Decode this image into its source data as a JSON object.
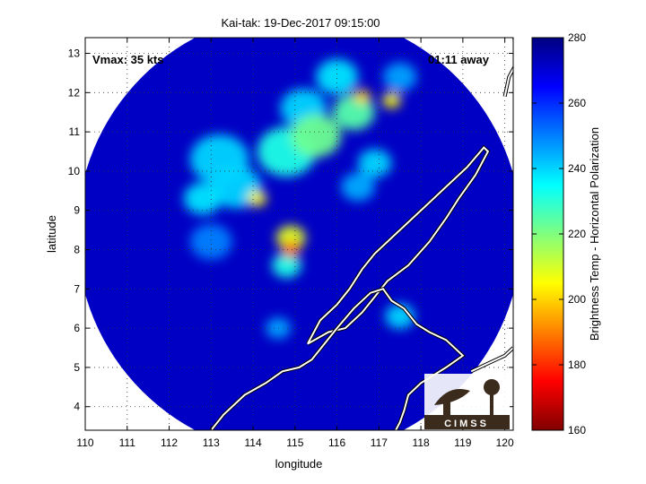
{
  "chart_data": {
    "type": "heatmap",
    "title": "Kai-tak: 19-Dec-2017 09:15:00",
    "xlabel": "longitude",
    "ylabel": "latitude",
    "xlim": [
      110,
      120.2
    ],
    "ylim": [
      3.4,
      13.4
    ],
    "x_ticks": [
      110,
      111,
      112,
      113,
      114,
      115,
      116,
      117,
      118,
      119,
      120
    ],
    "y_ticks": [
      4,
      5,
      6,
      7,
      8,
      9,
      10,
      11,
      12,
      13
    ],
    "grid": true,
    "annotations": {
      "vmax": "Vmax: 35 kts",
      "time_away": "01:11 away"
    },
    "colorbar": {
      "label": "Brightness Temp - Horizontal Polarization",
      "min": 160,
      "max": 280,
      "ticks": [
        160,
        180,
        200,
        220,
        240,
        260,
        280
      ],
      "colormap": "jet"
    },
    "swath": {
      "center_lon": 115.1,
      "center_lat": 8.4,
      "radius_deg": 5.3,
      "background_temp": 272
    },
    "features": [
      {
        "lon": 114.9,
        "lat": 8.0,
        "temp": 185,
        "spread": 0.22
      },
      {
        "lon": 114.9,
        "lat": 8.3,
        "temp": 208,
        "spread": 0.35
      },
      {
        "lon": 114.8,
        "lat": 7.6,
        "temp": 232,
        "spread": 0.35
      },
      {
        "lon": 114.1,
        "lat": 9.3,
        "temp": 205,
        "spread": 0.22
      },
      {
        "lon": 113.6,
        "lat": 9.6,
        "temp": 240,
        "spread": 0.6
      },
      {
        "lon": 112.8,
        "lat": 9.3,
        "temp": 238,
        "spread": 0.45
      },
      {
        "lon": 115.5,
        "lat": 10.9,
        "temp": 222,
        "spread": 0.6
      },
      {
        "lon": 114.8,
        "lat": 10.5,
        "temp": 232,
        "spread": 0.7
      },
      {
        "lon": 113.2,
        "lat": 10.3,
        "temp": 240,
        "spread": 0.7
      },
      {
        "lon": 116.4,
        "lat": 11.5,
        "temp": 225,
        "spread": 0.5
      },
      {
        "lon": 116.6,
        "lat": 11.9,
        "temp": 200,
        "spread": 0.2
      },
      {
        "lon": 117.3,
        "lat": 11.8,
        "temp": 205,
        "spread": 0.22
      },
      {
        "lon": 116.0,
        "lat": 12.4,
        "temp": 238,
        "spread": 0.5
      },
      {
        "lon": 115.2,
        "lat": 11.6,
        "temp": 240,
        "spread": 0.55
      },
      {
        "lon": 117.5,
        "lat": 12.4,
        "temp": 246,
        "spread": 0.4
      },
      {
        "lon": 116.9,
        "lat": 10.2,
        "temp": 240,
        "spread": 0.4
      },
      {
        "lon": 116.5,
        "lat": 9.6,
        "temp": 245,
        "spread": 0.4
      },
      {
        "lon": 114.6,
        "lat": 6.0,
        "temp": 246,
        "spread": 0.3
      },
      {
        "lon": 117.5,
        "lat": 6.3,
        "temp": 240,
        "spread": 0.35
      },
      {
        "lon": 113.0,
        "lat": 8.2,
        "temp": 250,
        "spread": 0.5
      }
    ],
    "coastlines": [
      {
        "name": "palawan",
        "points": [
          [
            115.3,
            5.6
          ],
          [
            115.8,
            5.9
          ],
          [
            116.2,
            6.0
          ],
          [
            116.6,
            6.4
          ],
          [
            116.9,
            6.8
          ],
          [
            117.2,
            7.2
          ],
          [
            117.7,
            7.6
          ],
          [
            118.2,
            8.2
          ],
          [
            118.6,
            8.8
          ],
          [
            118.9,
            9.3
          ],
          [
            119.3,
            9.9
          ],
          [
            119.6,
            10.5
          ],
          [
            119.5,
            10.6
          ],
          [
            119.1,
            10.1
          ],
          [
            118.6,
            9.6
          ],
          [
            118.2,
            9.2
          ],
          [
            117.8,
            8.8
          ],
          [
            117.3,
            8.3
          ],
          [
            116.9,
            7.9
          ],
          [
            116.6,
            7.5
          ],
          [
            116.3,
            7.0
          ],
          [
            116.0,
            6.6
          ],
          [
            115.6,
            6.2
          ],
          [
            115.3,
            5.6
          ]
        ]
      },
      {
        "name": "borneo",
        "points": [
          [
            113.0,
            3.4
          ],
          [
            113.3,
            3.8
          ],
          [
            113.8,
            4.3
          ],
          [
            114.3,
            4.6
          ],
          [
            114.7,
            4.9
          ],
          [
            115.1,
            5.0
          ],
          [
            115.4,
            5.2
          ],
          [
            115.7,
            5.6
          ],
          [
            116.0,
            6.0
          ],
          [
            116.4,
            6.5
          ],
          [
            116.8,
            6.9
          ],
          [
            117.1,
            7.0
          ],
          [
            117.3,
            6.7
          ],
          [
            117.6,
            6.5
          ],
          [
            117.9,
            6.1
          ],
          [
            118.2,
            5.9
          ],
          [
            118.6,
            5.7
          ],
          [
            119.0,
            5.3
          ],
          [
            118.6,
            5.0
          ],
          [
            118.3,
            4.8
          ],
          [
            118.0,
            4.6
          ],
          [
            117.7,
            4.3
          ],
          [
            117.6,
            3.9
          ],
          [
            117.5,
            3.6
          ],
          [
            117.4,
            3.4
          ]
        ]
      },
      {
        "name": "mindoro",
        "points": [
          [
            120.0,
            11.9
          ],
          [
            120.1,
            12.4
          ],
          [
            120.3,
            12.8
          ],
          [
            120.5,
            13.2
          ],
          [
            120.2,
            13.4
          ]
        ]
      },
      {
        "name": "tawitawi",
        "points": [
          [
            119.2,
            4.9
          ],
          [
            119.6,
            5.1
          ],
          [
            120.0,
            5.3
          ],
          [
            120.2,
            5.5
          ]
        ]
      }
    ]
  }
}
